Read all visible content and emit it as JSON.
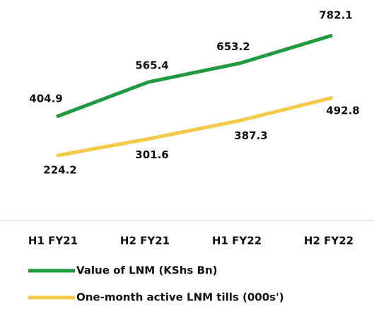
{
  "chart_data": {
    "type": "line",
    "categories": [
      "H1 FY21",
      "H2 FY21",
      "H1 FY22",
      "H2 FY22"
    ],
    "series": [
      {
        "name": "Value of LNM (KShs Bn)",
        "color": "#1f9a3c",
        "values": [
          404.9,
          565.4,
          653.2,
          782.1
        ]
      },
      {
        "name": "One-month active LNM tills (000s')",
        "color": "#f7c948",
        "values": [
          224.2,
          301.6,
          387.3,
          492.8
        ]
      }
    ]
  }
}
